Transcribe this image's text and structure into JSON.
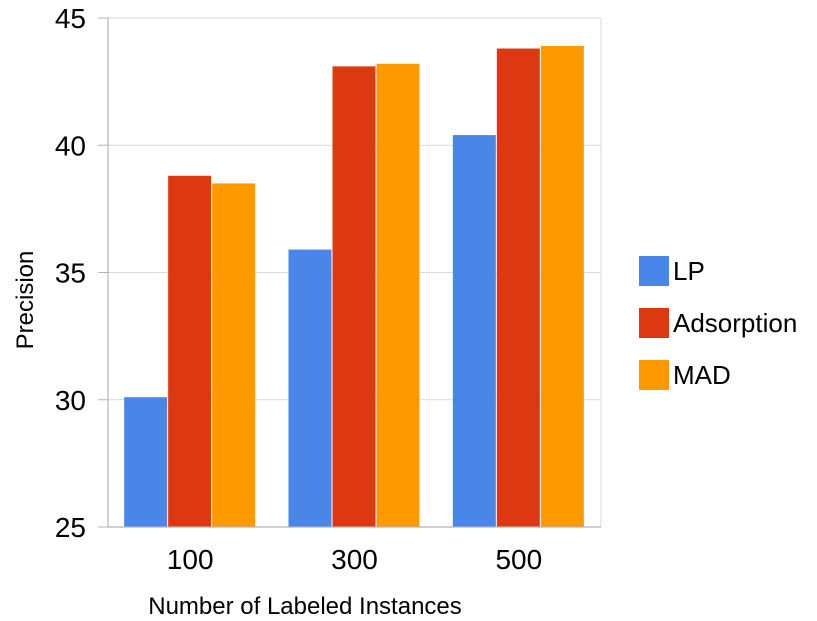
{
  "chart_data": {
    "type": "bar",
    "title": "",
    "xlabel": "Number of Labeled Instances",
    "ylabel": "Precision",
    "categories": [
      "100",
      "300",
      "500"
    ],
    "ylim": [
      25,
      45
    ],
    "yticks": [
      "25",
      "30",
      "35",
      "40",
      "45"
    ],
    "grid": true,
    "legend_position": "right",
    "series": [
      {
        "name": "LP",
        "color": "#4a86e8",
        "values": [
          30.1,
          35.9,
          40.4
        ]
      },
      {
        "name": "Adsorption",
        "color": "#dc3912",
        "values": [
          38.8,
          43.1,
          43.8
        ]
      },
      {
        "name": "MAD",
        "color": "#ff9900",
        "values": [
          38.5,
          43.2,
          43.9
        ]
      }
    ]
  }
}
